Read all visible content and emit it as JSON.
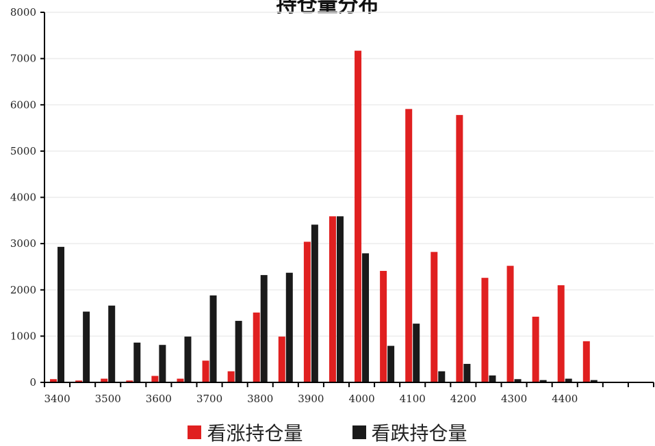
{
  "chart_data": {
    "type": "bar",
    "title": "持仓量分布",
    "categories": [
      "3400",
      "3450",
      "3500",
      "3550",
      "3600",
      "3650",
      "3700",
      "3750",
      "3800",
      "3850",
      "3900",
      "3950",
      "4000",
      "4050",
      "4100",
      "4150",
      "4200",
      "4250",
      "4300",
      "4350",
      "4400",
      "4450",
      "4500",
      "4550"
    ],
    "x_tick_labels": [
      "3400",
      "3500",
      "3600",
      "3700",
      "3800",
      "3900",
      "4000",
      "4100",
      "4200",
      "4300",
      "4400"
    ],
    "ylim": [
      0,
      8000
    ],
    "y_ticks": [
      0,
      1000,
      2000,
      3000,
      4000,
      5000,
      6000,
      7000,
      8000
    ],
    "grid": true,
    "legend_position": "bottom",
    "series": [
      {
        "name": "看涨持仓量",
        "color": "#e02020",
        "values": [
          70,
          40,
          80,
          40,
          140,
          80,
          470,
          240,
          1510,
          990,
          3040,
          3590,
          7170,
          2410,
          5910,
          2820,
          5780,
          2260,
          2520,
          1420,
          2100,
          890,
          0,
          0
        ]
      },
      {
        "name": "看跌持仓量",
        "color": "#1a1a1a",
        "values": [
          2930,
          1530,
          1660,
          860,
          810,
          990,
          1880,
          1330,
          2320,
          2370,
          3410,
          3590,
          2790,
          790,
          1270,
          240,
          400,
          150,
          70,
          50,
          80,
          50,
          0,
          0
        ]
      }
    ]
  }
}
